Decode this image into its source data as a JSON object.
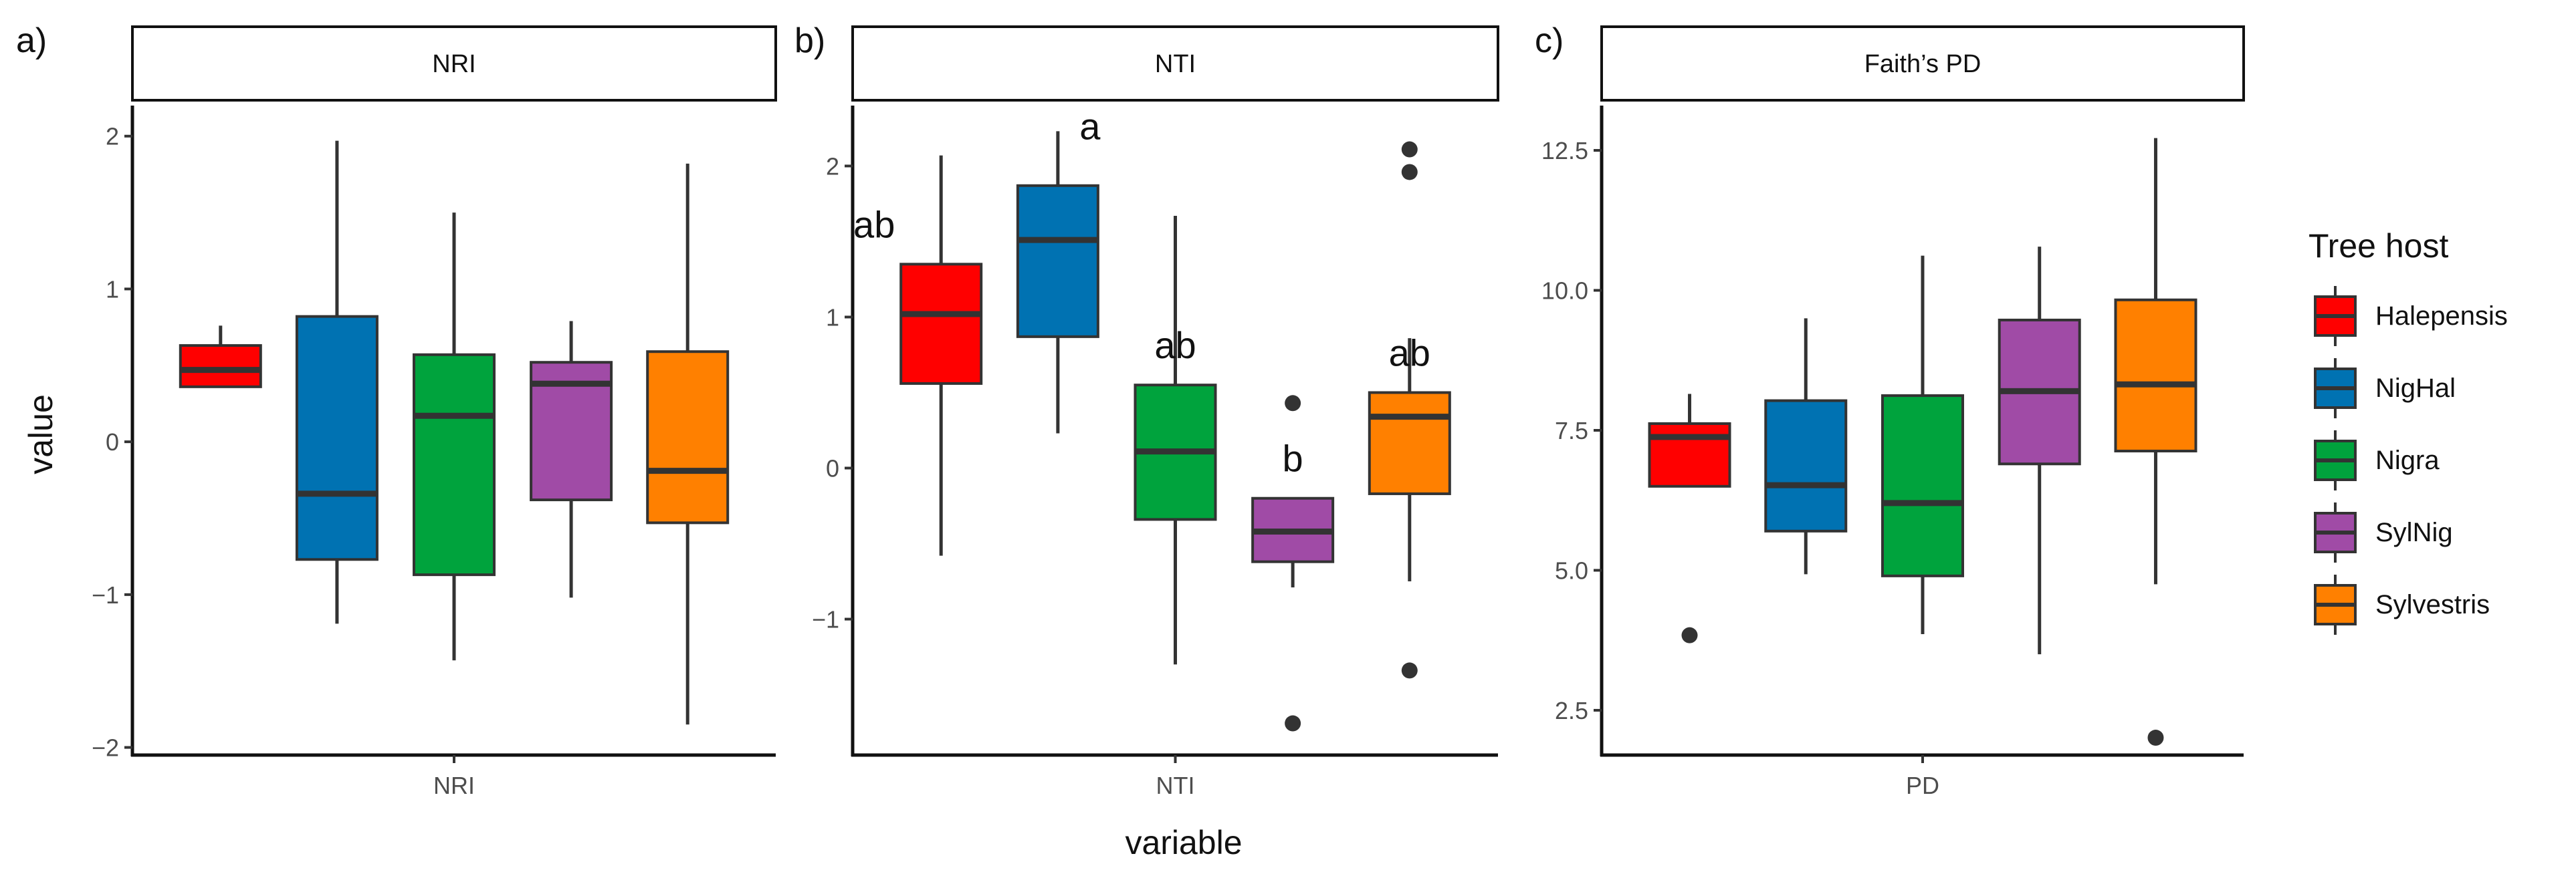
{
  "chart_data": [
    {
      "type": "boxplot",
      "panel_label": "a)",
      "strip": "NRI",
      "x_tick": "NRI",
      "ylabel": "value",
      "xlabel": "",
      "ylim": [
        -2.05,
        2.2
      ],
      "yticks": [
        -2,
        -1,
        0,
        1,
        2
      ],
      "ytick_labels": [
        "−2",
        "−1",
        "0",
        "1",
        "2"
      ],
      "grid": false,
      "boxes": [
        {
          "group": "Halepensis",
          "whisker_low": 0.36,
          "q1": 0.36,
          "median": 0.47,
          "q3": 0.63,
          "whisker_high": 0.76,
          "outliers": [],
          "label": ""
        },
        {
          "group": "NigHal",
          "whisker_low": -1.19,
          "q1": -0.77,
          "median": -0.34,
          "q3": 0.82,
          "whisker_high": 1.97,
          "outliers": [],
          "label": ""
        },
        {
          "group": "Nigra",
          "whisker_low": -1.43,
          "q1": -0.87,
          "median": 0.17,
          "q3": 0.57,
          "whisker_high": 1.5,
          "outliers": [],
          "label": ""
        },
        {
          "group": "SylNig",
          "whisker_low": -1.02,
          "q1": -0.38,
          "median": 0.38,
          "q3": 0.52,
          "whisker_high": 0.79,
          "outliers": [],
          "label": ""
        },
        {
          "group": "Sylvestris",
          "whisker_low": -1.85,
          "q1": -0.53,
          "median": -0.19,
          "q3": 0.59,
          "whisker_high": 1.82,
          "outliers": [],
          "label": ""
        }
      ]
    },
    {
      "type": "boxplot",
      "panel_label": "b)",
      "strip": "NTI",
      "x_tick": "NTI",
      "ylabel": "",
      "xlabel": "variable",
      "ylim": [
        -1.9,
        2.4
      ],
      "yticks": [
        -1,
        0,
        1,
        2
      ],
      "ytick_labels": [
        "−1",
        "0",
        "1",
        "2"
      ],
      "grid": false,
      "boxes": [
        {
          "group": "Halepensis",
          "whisker_low": -0.58,
          "q1": 0.56,
          "median": 1.02,
          "q3": 1.35,
          "whisker_high": 2.07,
          "outliers": [],
          "label": "ab"
        },
        {
          "group": "NigHal",
          "whisker_low": 0.23,
          "q1": 0.87,
          "median": 1.51,
          "q3": 1.87,
          "whisker_high": 2.23,
          "outliers": [],
          "label": "a"
        },
        {
          "group": "Nigra",
          "whisker_low": -1.3,
          "q1": -0.34,
          "median": 0.11,
          "q3": 0.55,
          "whisker_high": 1.67,
          "outliers": [],
          "label": "ab"
        },
        {
          "group": "SylNig",
          "whisker_low": -0.79,
          "q1": -0.62,
          "median": -0.42,
          "q3": -0.2,
          "whisker_high": -0.2,
          "outliers": [
            0.43,
            -1.69
          ],
          "label": "b"
        },
        {
          "group": "Sylvestris",
          "whisker_low": -0.75,
          "q1": -0.17,
          "median": 0.34,
          "q3": 0.5,
          "whisker_high": 0.86,
          "outliers": [
            2.11,
            1.96,
            -1.34
          ],
          "label": "ab"
        }
      ]
    },
    {
      "type": "boxplot",
      "panel_label": "c)",
      "strip": "Faith’s PD",
      "x_tick": "PD",
      "ylabel": "",
      "xlabel": "",
      "ylim": [
        1.7,
        13.3
      ],
      "yticks": [
        2.5,
        5.0,
        7.5,
        10.0,
        12.5
      ],
      "ytick_labels": [
        "2.5",
        "5.0",
        "7.5",
        "10.0",
        "12.5"
      ],
      "grid": false,
      "boxes": [
        {
          "group": "Halepensis",
          "whisker_low": 6.5,
          "q1": 6.5,
          "median": 7.38,
          "q3": 7.62,
          "whisker_high": 8.15,
          "outliers": [
            3.84
          ],
          "label": ""
        },
        {
          "group": "NigHal",
          "whisker_low": 4.93,
          "q1": 5.7,
          "median": 6.52,
          "q3": 8.03,
          "whisker_high": 9.5,
          "outliers": [],
          "label": ""
        },
        {
          "group": "Nigra",
          "whisker_low": 3.86,
          "q1": 4.9,
          "median": 6.2,
          "q3": 8.12,
          "whisker_high": 10.62,
          "outliers": [],
          "label": ""
        },
        {
          "group": "SylNig",
          "whisker_low": 3.5,
          "q1": 6.9,
          "median": 8.2,
          "q3": 9.47,
          "whisker_high": 10.78,
          "outliers": [],
          "label": ""
        },
        {
          "group": "Sylvestris",
          "whisker_low": 4.75,
          "q1": 7.13,
          "median": 8.32,
          "q3": 9.83,
          "whisker_high": 12.72,
          "outliers": [
            2.01
          ],
          "label": ""
        }
      ]
    }
  ],
  "legend": {
    "title": "Tree host",
    "placement": "right",
    "items": [
      {
        "name": "Halepensis",
        "color": "#FF0000"
      },
      {
        "name": "NigHal",
        "color": "#0072B2"
      },
      {
        "name": "Nigra",
        "color": "#00A33D"
      },
      {
        "name": "SylNig",
        "color": "#A04BA6"
      },
      {
        "name": "Sylvestris",
        "color": "#FF8000"
      }
    ]
  }
}
